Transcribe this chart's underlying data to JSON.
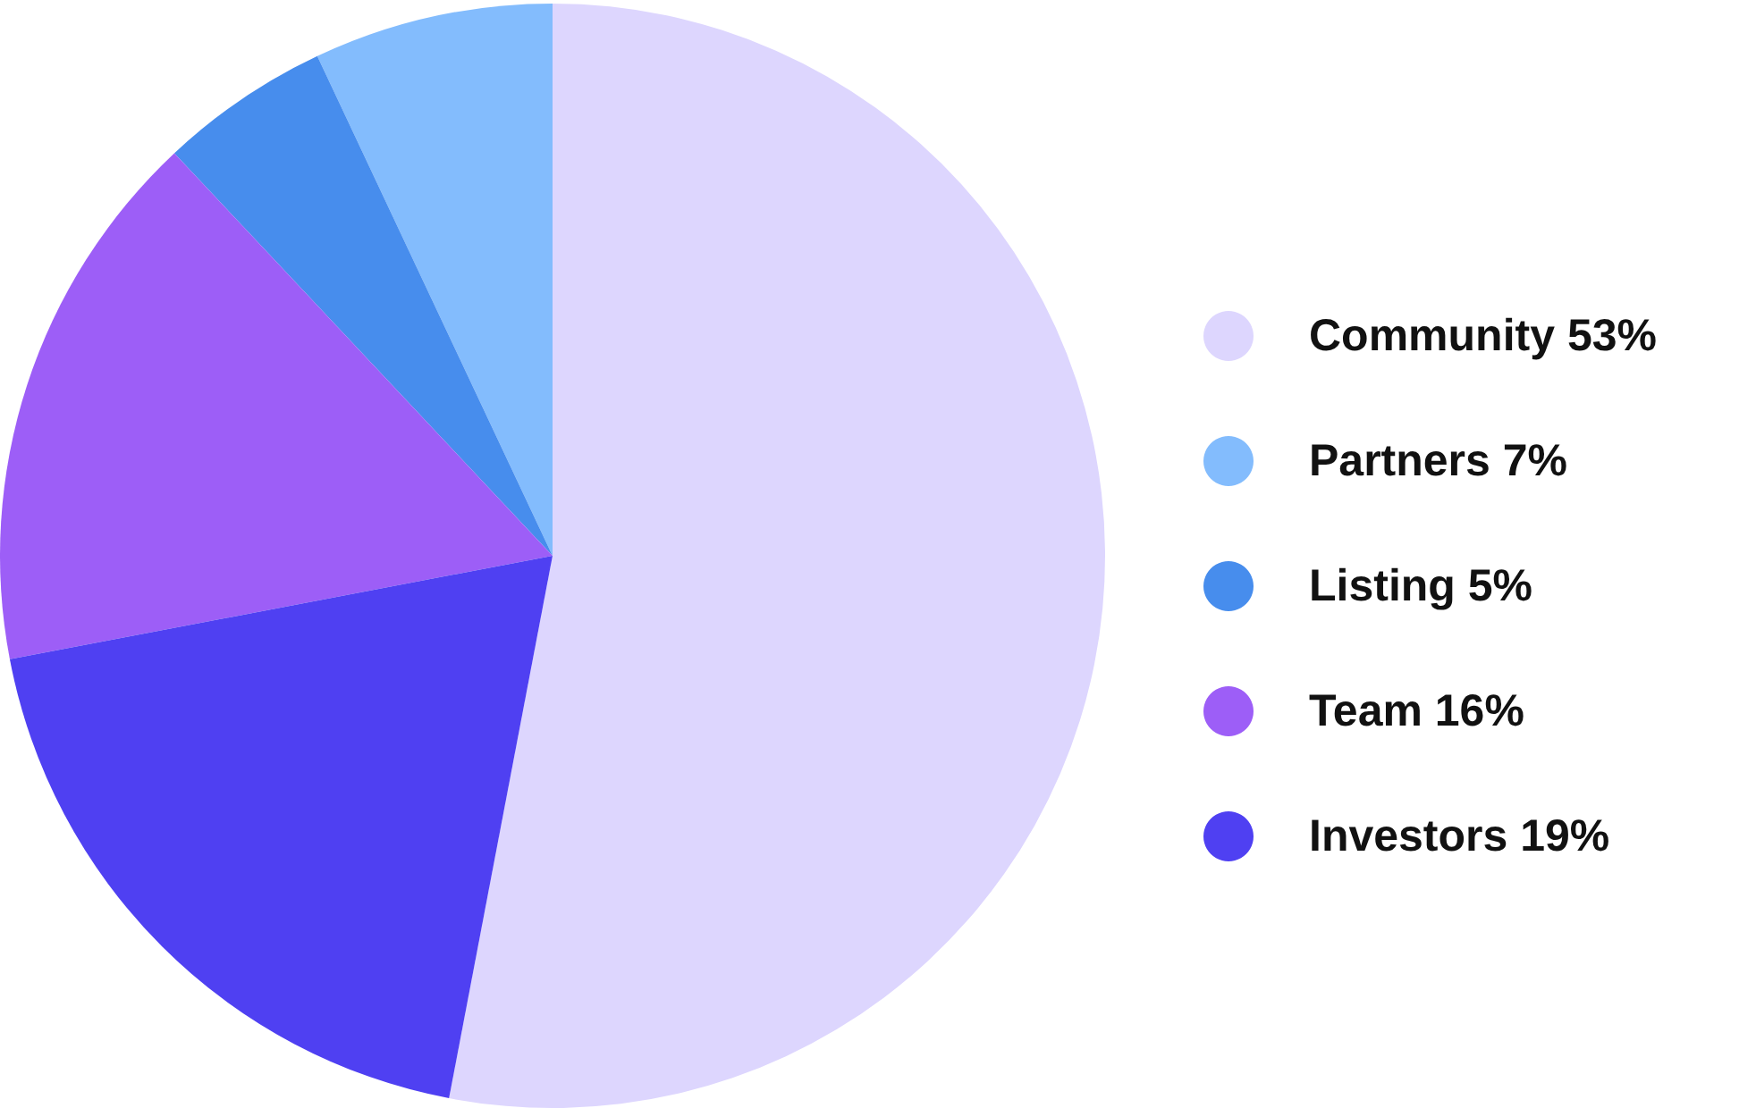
{
  "chart_data": {
    "type": "pie",
    "categories": [
      "Community",
      "Partners",
      "Listing",
      "Team",
      "Investors"
    ],
    "values": [
      53,
      7,
      5,
      16,
      19
    ],
    "value_labels": [
      "53%",
      "7%",
      "5%",
      "16%",
      "19%"
    ],
    "colors": [
      "#ddd6fe",
      "#83bcfd",
      "#478ded",
      "#9d5ef7",
      "#4f40f2"
    ],
    "legend": "right"
  }
}
